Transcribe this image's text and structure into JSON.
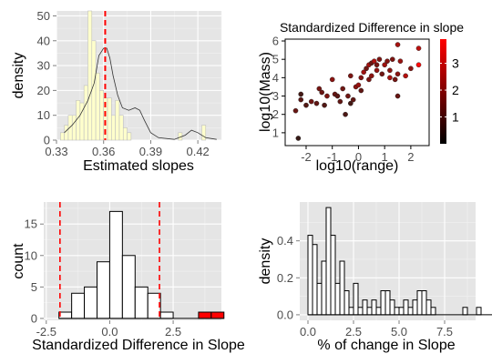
{
  "chart_data": [
    {
      "id": "p1",
      "type": "histogram",
      "xlabel": "Estimated slopes",
      "ylabel": "density",
      "xlim": [
        0.33,
        0.435
      ],
      "ylim": [
        0,
        52
      ],
      "xticks": [
        0.33,
        0.36,
        0.39,
        0.42
      ],
      "xtick_labels": [
        "0.33",
        "0.36",
        "0.39",
        "0.42"
      ],
      "yticks": [
        0,
        10,
        20,
        30,
        40,
        50
      ],
      "bin_width": 0.0025,
      "bin_start": 0.3325,
      "counts": [
        3,
        6,
        10,
        10,
        16,
        15,
        22,
        52,
        40,
        27,
        20,
        17,
        17,
        10,
        16,
        10,
        5,
        3,
        0,
        0,
        0,
        0,
        0,
        0,
        0,
        0,
        0,
        0,
        0,
        0,
        3,
        0,
        0,
        0,
        0,
        0,
        6
      ],
      "density_curve": [
        [
          0.335,
          3
        ],
        [
          0.34,
          6
        ],
        [
          0.345,
          10
        ],
        [
          0.35,
          16
        ],
        [
          0.354,
          23
        ],
        [
          0.357,
          34
        ],
        [
          0.36,
          37
        ],
        [
          0.362,
          37
        ],
        [
          0.364,
          33
        ],
        [
          0.366,
          26
        ],
        [
          0.369,
          18
        ],
        [
          0.372,
          13
        ],
        [
          0.376,
          12
        ],
        [
          0.38,
          13
        ],
        [
          0.383,
          12
        ],
        [
          0.386,
          8
        ],
        [
          0.39,
          3
        ],
        [
          0.395,
          1
        ],
        [
          0.405,
          0.3
        ],
        [
          0.412,
          2
        ],
        [
          0.416,
          4
        ],
        [
          0.42,
          3
        ],
        [
          0.425,
          1
        ],
        [
          0.432,
          0.3
        ]
      ],
      "vline": 0.361,
      "fill_color": "#ffffcc",
      "vline_color": "#ff0000"
    },
    {
      "id": "p2",
      "type": "scatter",
      "title": "Standardized Difference in slope",
      "xlabel": "log10(range)",
      "ylabel": "log10(Mass)",
      "xlim": [
        -2.8,
        2.7
      ],
      "ylim": [
        0.3,
        6.1
      ],
      "xticks": [
        -2,
        -1,
        0,
        1,
        2
      ],
      "yticks": [
        1,
        2,
        3,
        4,
        5,
        6
      ],
      "colorbar": {
        "ticks": [
          1,
          2,
          3
        ],
        "min": 0,
        "max": 3.9,
        "low_color": "#000000",
        "high_color": "#ff0000"
      },
      "points": [
        [
          -2.3,
          0.7,
          0.8
        ],
        [
          -2.4,
          2.2,
          1.5
        ],
        [
          -2.0,
          2.5,
          1.2
        ],
        [
          -2.2,
          3.1,
          1.0
        ],
        [
          -2.2,
          2.8,
          1.3
        ],
        [
          -1.8,
          2.7,
          1.6
        ],
        [
          -1.6,
          2.6,
          1.4
        ],
        [
          -1.5,
          3.4,
          1.7
        ],
        [
          -1.4,
          3.2,
          1.5
        ],
        [
          -1.3,
          2.5,
          1.2
        ],
        [
          -1.2,
          3.0,
          1.8
        ],
        [
          -1.0,
          3.9,
          2.0
        ],
        [
          -0.9,
          3.1,
          1.5
        ],
        [
          -0.8,
          3.0,
          1.3
        ],
        [
          -0.7,
          2.7,
          1.4
        ],
        [
          -0.6,
          3.4,
          1.6
        ],
        [
          -0.4,
          3.0,
          1.6
        ],
        [
          -0.3,
          2.6,
          1.0
        ],
        [
          -0.2,
          2.8,
          1.4
        ],
        [
          -0.3,
          4.1,
          1.8
        ],
        [
          -0.1,
          3.5,
          2.0
        ],
        [
          0.0,
          3.6,
          2.2
        ],
        [
          0.1,
          3.3,
          1.4
        ],
        [
          0.1,
          4.0,
          1.9
        ],
        [
          0.2,
          4.3,
          2.3
        ],
        [
          0.3,
          4.5,
          1.6
        ],
        [
          0.4,
          4.7,
          2.4
        ],
        [
          0.4,
          3.9,
          1.8
        ],
        [
          0.5,
          4.1,
          2.0
        ],
        [
          0.5,
          4.8,
          1.5
        ],
        [
          0.6,
          4.9,
          2.5
        ],
        [
          0.7,
          4.4,
          2.1
        ],
        [
          0.7,
          4.7,
          1.7
        ],
        [
          0.8,
          5.0,
          1.8
        ],
        [
          1.0,
          4.7,
          2.3
        ],
        [
          1.1,
          4.9,
          1.9
        ],
        [
          1.2,
          4.4,
          2.0
        ],
        [
          1.2,
          4.0,
          2.4
        ],
        [
          1.3,
          5.0,
          1.8
        ],
        [
          1.4,
          3.9,
          1.7
        ],
        [
          1.5,
          3.0,
          1.5
        ],
        [
          1.5,
          4.2,
          2.0
        ],
        [
          1.6,
          4.9,
          2.2
        ],
        [
          1.8,
          4.1,
          2.6
        ],
        [
          2.0,
          4.5,
          2.0
        ],
        [
          2.3,
          4.7,
          3.9
        ],
        [
          2.3,
          5.6,
          2.7
        ],
        [
          1.5,
          5.8,
          2.4
        ],
        [
          0.9,
          4.2,
          1.6
        ],
        [
          -0.5,
          2.0,
          1.1
        ]
      ]
    },
    {
      "id": "p3",
      "type": "histogram",
      "xlabel": "Standardized Difference in Slope",
      "ylabel": "count",
      "xlim": [
        -2.6,
        4.4
      ],
      "ylim": [
        -0.3,
        18.5
      ],
      "xticks": [
        -2.5,
        0,
        2.5
      ],
      "xtick_labels": [
        "-2.5",
        "0.0",
        "2.5"
      ],
      "yticks": [
        0,
        5,
        10,
        15
      ],
      "bin_width": 0.5,
      "bin_start": -2.0,
      "counts": [
        1,
        4,
        5,
        9,
        17,
        10,
        5,
        4,
        1,
        0,
        0,
        1,
        1
      ],
      "highlight_from_bin": 10,
      "highlight_color": "#ff0000",
      "vlines": [
        -1.96,
        1.96
      ],
      "vline_color": "#ff0000"
    },
    {
      "id": "p4",
      "type": "histogram",
      "xlabel": "% of change in Slope",
      "ylabel": "density",
      "xlim": [
        -0.45,
        9.2
      ],
      "ylim": [
        -0.03,
        0.61
      ],
      "xticks": [
        0,
        2.5,
        5,
        7.5
      ],
      "xtick_labels": [
        "0.0",
        "2.5",
        "5.0",
        "7.5"
      ],
      "yticks": [
        0,
        0.2,
        0.4
      ],
      "ytick_labels": [
        "0.0",
        "0.2",
        "0.4"
      ],
      "bin_width": 0.25,
      "bin_start": 0,
      "counts": [
        0.43,
        0.38,
        0.17,
        0.29,
        0.58,
        0.43,
        0.17,
        0.29,
        0.13,
        0.04,
        0.17,
        0.04,
        0.08,
        0.04,
        0.08,
        0.04,
        0.13,
        0.13,
        0.08,
        0.04,
        0.04,
        0.08,
        0.04,
        0.08,
        0.13,
        0.13,
        0.08,
        0.04,
        0,
        0,
        0,
        0,
        0,
        0,
        0.04,
        0,
        0,
        0.04,
        0,
        0,
        0,
        0.04,
        0,
        0,
        0,
        0.04
      ]
    }
  ]
}
